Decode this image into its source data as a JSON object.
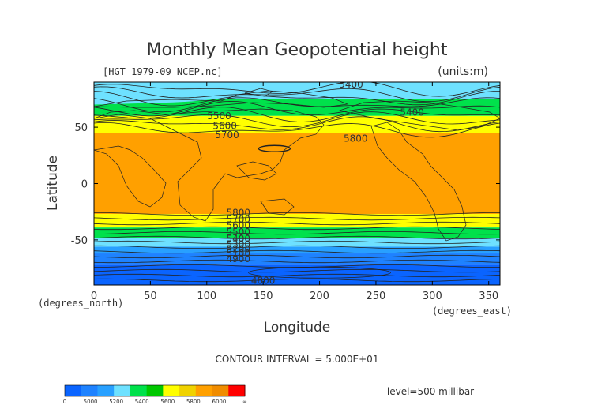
{
  "chart_data": {
    "type": "heatmap",
    "title": "Monthly Mean Geopotential height",
    "file_label": "[HGT_1979-09_NCEP.nc]",
    "units_label": "(units:m)",
    "xlabel": "Longitude",
    "ylabel": "Latitude",
    "xunit_label": "(degrees_east)",
    "yunit_label": "(degrees_north)",
    "xlim": [
      0,
      360
    ],
    "ylim": [
      -90,
      90
    ],
    "xticks": [
      0,
      50,
      100,
      150,
      200,
      250,
      300,
      350
    ],
    "yticks": [
      50,
      0,
      -50
    ],
    "contour_interval_text": "CONTOUR INTERVAL = 5.000E+01",
    "level_text": "level=500 millibar",
    "contour_interval": 50,
    "colorbar": {
      "ticks": [
        "0",
        "5000",
        "5200",
        "5400",
        "5600",
        "5800",
        "6000",
        "∞"
      ],
      "colors": [
        "#0a64ff",
        "#1e82ff",
        "#28a0ff",
        "#6ee1ff",
        "#00e14b",
        "#00c800",
        "#ffff00",
        "#f0d200",
        "#ffa000",
        "#f08c00",
        "#ff0000"
      ]
    },
    "bands": [
      {
        "from_lat": 90,
        "to_lat": 75,
        "value": 5300,
        "color": "#6ee1ff"
      },
      {
        "from_lat": 75,
        "to_lat": 60,
        "value": 5450,
        "color": "#00e14b"
      },
      {
        "from_lat": 60,
        "to_lat": 45,
        "value": 5650,
        "color": "#ffff00"
      },
      {
        "from_lat": 45,
        "to_lat": -27,
        "value": 5850,
        "color": "#ffa000"
      },
      {
        "from_lat": -27,
        "to_lat": -39,
        "value": 5700,
        "color": "#ffff00"
      },
      {
        "from_lat": -39,
        "to_lat": -48,
        "value": 5500,
        "color": "#00e14b"
      },
      {
        "from_lat": -48,
        "to_lat": -56,
        "value": 5350,
        "color": "#6ee1ff"
      },
      {
        "from_lat": -56,
        "to_lat": -62,
        "value": 5250,
        "color": "#28a0ff"
      },
      {
        "from_lat": -62,
        "to_lat": -72,
        "value": 5100,
        "color": "#1e82ff"
      },
      {
        "from_lat": -72,
        "to_lat": -90,
        "value": 4900,
        "color": "#0a64ff"
      }
    ],
    "contour_labels": [
      {
        "text": "5400",
        "lon": 228,
        "lat": 88
      },
      {
        "text": "5400",
        "lon": 282,
        "lat": 63
      },
      {
        "text": "5500",
        "lon": 111,
        "lat": 60
      },
      {
        "text": "5600",
        "lon": 116,
        "lat": 51
      },
      {
        "text": "5700",
        "lon": 118,
        "lat": 43
      },
      {
        "text": "5800",
        "lon": 232,
        "lat": 40
      },
      {
        "text": "5800",
        "lon": 128,
        "lat": -26
      },
      {
        "text": "5700",
        "lon": 128,
        "lat": -32
      },
      {
        "text": "5600",
        "lon": 128,
        "lat": -37
      },
      {
        "text": "5500",
        "lon": 128,
        "lat": -43
      },
      {
        "text": "5400",
        "lon": 128,
        "lat": -49
      },
      {
        "text": "5300",
        "lon": 128,
        "lat": -54
      },
      {
        "text": "5200",
        "lon": 128,
        "lat": -58
      },
      {
        "text": "5100",
        "lon": 128,
        "lat": -62
      },
      {
        "text": "4900",
        "lon": 128,
        "lat": -67
      },
      {
        "text": "4800",
        "lon": 150,
        "lat": -86
      }
    ]
  }
}
